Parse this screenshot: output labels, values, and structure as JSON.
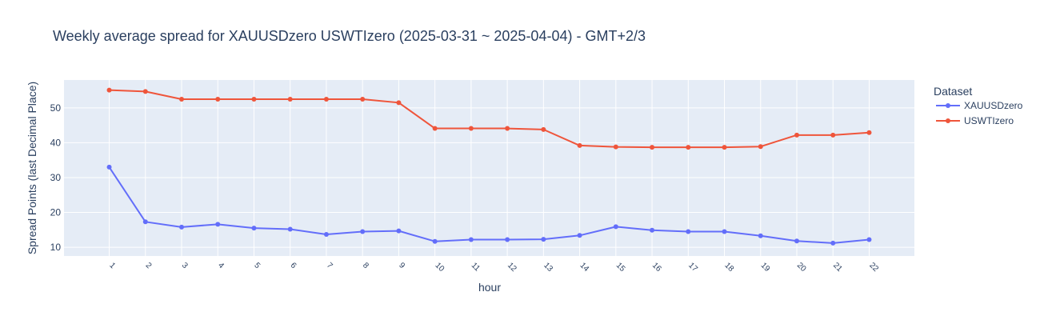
{
  "chart_data": {
    "type": "line",
    "title": "Weekly average spread for  XAUUSDzero USWTIzero (2025-03-31 ~ 2025-04-04) - GMT+2/3",
    "xlabel": "hour",
    "ylabel": "Spread Points (last Decimal Place)",
    "x": [
      1,
      2,
      3,
      4,
      5,
      6,
      7,
      8,
      9,
      10,
      11,
      12,
      13,
      14,
      15,
      16,
      17,
      18,
      19,
      20,
      21,
      22
    ],
    "xlim": [
      -0.25,
      23.25
    ],
    "ylim": [
      7.5,
      58
    ],
    "yticks": [
      10,
      20,
      30,
      40,
      50
    ],
    "legend_title": "Dataset",
    "legend_position": "right",
    "grid": true,
    "series": [
      {
        "name": "XAUUSDzero",
        "color": "#636efa",
        "values": [
          33.0,
          17.3,
          15.8,
          16.6,
          15.5,
          15.2,
          13.7,
          14.5,
          14.7,
          11.7,
          12.2,
          12.2,
          12.3,
          13.4,
          15.9,
          14.9,
          14.5,
          14.5,
          13.3,
          11.8,
          11.2,
          12.2
        ]
      },
      {
        "name": "USWTIzero",
        "color": "#ef553b",
        "values": [
          55.1,
          54.7,
          52.5,
          52.5,
          52.5,
          52.5,
          52.5,
          52.5,
          51.5,
          44.1,
          44.1,
          44.1,
          43.8,
          39.2,
          38.8,
          38.7,
          38.7,
          38.7,
          38.9,
          42.2,
          42.2,
          42.9
        ]
      }
    ]
  }
}
